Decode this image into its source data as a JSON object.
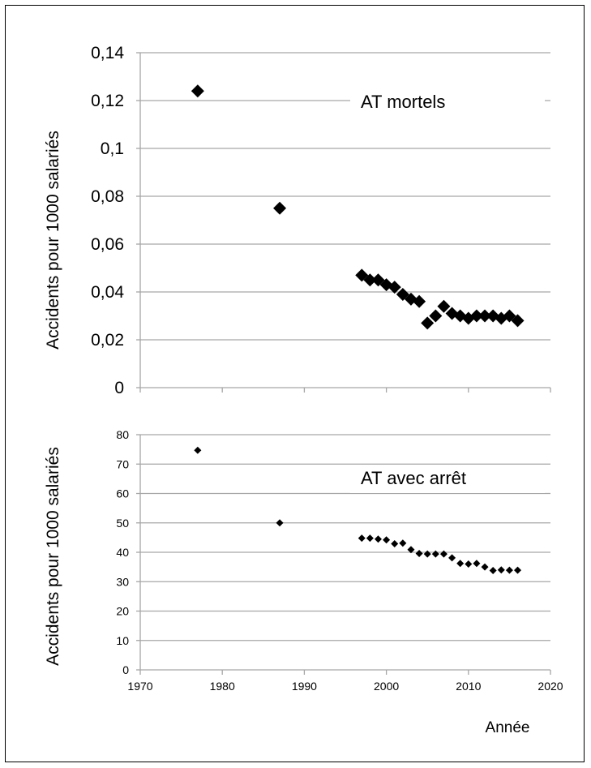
{
  "chart_data": [
    {
      "type": "scatter",
      "annotation": "AT mortels",
      "ylabel": "Accidents pour 1000 salariés",
      "ylim": [
        0,
        0.14
      ],
      "xlim": [
        1970,
        2020
      ],
      "y_ticks": [
        "0",
        "0,02",
        "0,04",
        "0,06",
        "0,08",
        "0,1",
        "0,12",
        "0,14"
      ],
      "grid": true,
      "x": [
        1977,
        1987,
        1997,
        1998,
        1999,
        2000,
        2001,
        2002,
        2003,
        2004,
        2005,
        2006,
        2007,
        2008,
        2009,
        2010,
        2011,
        2012,
        2013,
        2014,
        2015,
        2016
      ],
      "y": [
        0.124,
        0.075,
        0.047,
        0.045,
        0.045,
        0.043,
        0.042,
        0.039,
        0.037,
        0.036,
        0.027,
        0.03,
        0.034,
        0.031,
        0.03,
        0.029,
        0.03,
        0.03,
        0.03,
        0.029,
        0.03,
        0.028
      ]
    },
    {
      "type": "scatter",
      "annotation": "AT avec arrêt",
      "ylabel": "Accidents pour 1000 salariés",
      "xlabel": "Année",
      "ylim": [
        0,
        80
      ],
      "xlim": [
        1970,
        2020
      ],
      "y_ticks": [
        "0",
        "10",
        "20",
        "30",
        "40",
        "50",
        "60",
        "70",
        "80"
      ],
      "x_ticks": [
        "1970",
        "1980",
        "1990",
        "2000",
        "2010",
        "2020"
      ],
      "grid": true,
      "x": [
        1977,
        1987,
        1997,
        1998,
        1999,
        2000,
        2001,
        2002,
        2003,
        2004,
        2005,
        2006,
        2007,
        2008,
        2009,
        2010,
        2011,
        2012,
        2013,
        2014,
        2015,
        2016
      ],
      "y": [
        74.7,
        50,
        44.8,
        44.8,
        44.5,
        44.2,
        42.9,
        43.1,
        40.9,
        39.6,
        39.4,
        39.4,
        39.4,
        38.1,
        36.2,
        36,
        36.2,
        35,
        33.8,
        34,
        33.9,
        33.9
      ]
    }
  ],
  "colors": {
    "marker": "#000000",
    "grid": "#a6a6a6",
    "axis": "#a6a6a6",
    "frame": "#000000"
  }
}
